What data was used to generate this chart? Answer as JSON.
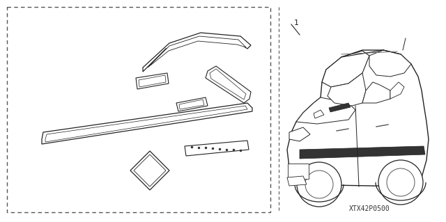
{
  "background_color": "#ffffff",
  "figure_width": 6.4,
  "figure_height": 3.19,
  "dpi": 100,
  "part_number_text": "XTX42P0500",
  "label_number": "1",
  "line_color": "#222222"
}
